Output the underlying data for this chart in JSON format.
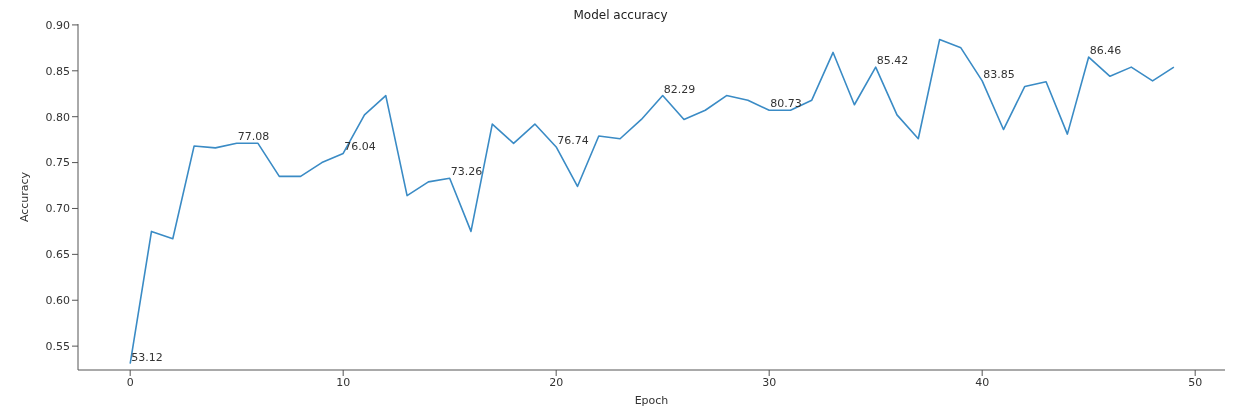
{
  "chart_data": {
    "type": "line",
    "title": "Model accuracy",
    "xlabel": "Epoch",
    "ylabel": "Accuracy",
    "x": [
      0,
      1,
      2,
      3,
      4,
      5,
      6,
      7,
      8,
      9,
      10,
      11,
      12,
      13,
      14,
      15,
      16,
      17,
      18,
      19,
      20,
      21,
      22,
      23,
      24,
      25,
      26,
      27,
      28,
      29,
      30,
      31,
      32,
      33,
      34,
      35,
      36,
      37,
      38,
      39,
      40,
      41,
      42,
      43,
      44,
      45,
      46,
      47,
      48,
      49
    ],
    "series": [
      {
        "color": "#3a8bc5",
        "values": [
          0.531,
          0.675,
          0.667,
          0.768,
          0.766,
          0.771,
          0.771,
          0.735,
          0.735,
          0.75,
          0.76,
          0.802,
          0.823,
          0.714,
          0.729,
          0.733,
          0.675,
          0.792,
          0.771,
          0.792,
          0.767,
          0.724,
          0.779,
          0.776,
          0.797,
          0.823,
          0.797,
          0.807,
          0.823,
          0.818,
          0.807,
          0.807,
          0.818,
          0.87,
          0.813,
          0.854,
          0.802,
          0.776,
          0.884,
          0.875,
          0.839,
          0.786,
          0.833,
          0.838,
          0.781,
          0.865,
          0.844,
          0.854,
          0.839,
          0.854
        ]
      }
    ],
    "annotations": [
      {
        "text": "53.12",
        "x": 0,
        "y": 0.531
      },
      {
        "text": "77.08",
        "x": 5,
        "y": 0.771
      },
      {
        "text": "76.04",
        "x": 10,
        "y": 0.76
      },
      {
        "text": "73.26",
        "x": 15,
        "y": 0.733
      },
      {
        "text": "76.74",
        "x": 20,
        "y": 0.767
      },
      {
        "text": "82.29",
        "x": 25,
        "y": 0.823
      },
      {
        "text": "80.73",
        "x": 30,
        "y": 0.807
      },
      {
        "text": "85.42",
        "x": 35,
        "y": 0.854
      },
      {
        "text": "83.85",
        "x": 40,
        "y": 0.839
      },
      {
        "text": "86.46",
        "x": 45,
        "y": 0.865
      }
    ],
    "xlim": [
      -2.45,
      51.4
    ],
    "xticks": [
      0,
      10,
      20,
      30,
      40,
      50
    ],
    "ylim": [
      0.524,
      0.901
    ],
    "yticks": [
      {
        "value": 0.55,
        "label": "0.55"
      },
      {
        "value": 0.6,
        "label": "0.60"
      },
      {
        "value": 0.65,
        "label": "0.65"
      },
      {
        "value": 0.7,
        "label": "0.70"
      },
      {
        "value": 0.75,
        "label": "0.75"
      },
      {
        "value": 0.8,
        "label": "0.80"
      },
      {
        "value": 0.85,
        "label": "0.85"
      },
      {
        "value": 0.9,
        "label": "0.90"
      }
    ],
    "grid": false,
    "legend": false,
    "marker": "none",
    "line_style": "solid"
  }
}
